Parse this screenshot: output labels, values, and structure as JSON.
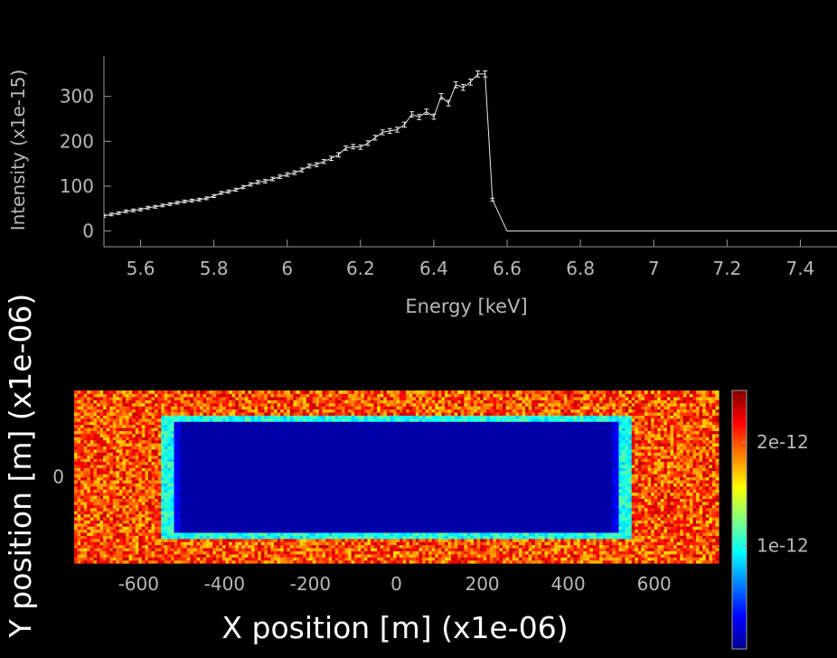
{
  "chart_data": [
    {
      "type": "line",
      "title": "",
      "xlabel": "Energy [keV]",
      "ylabel": "Intensity (x1e-15)",
      "xlim": [
        5.5,
        7.5
      ],
      "ylim": [
        -35,
        390
      ],
      "xticks": [
        5.6,
        5.8,
        6,
        6.2,
        6.4,
        6.6,
        6.8,
        7,
        7.2,
        7.4
      ],
      "xtick_labels": [
        "5.6",
        "5.8",
        "6",
        "6.2",
        "6.4",
        "6.6",
        "6.8",
        "7",
        "7.2",
        "7.4"
      ],
      "yticks": [
        0,
        100,
        200,
        300
      ],
      "ytick_labels": [
        "0",
        "100",
        "200",
        "300"
      ],
      "grid": false,
      "error_bars": true,
      "x": [
        5.5,
        5.52,
        5.54,
        5.56,
        5.58,
        5.6,
        5.62,
        5.64,
        5.66,
        5.68,
        5.7,
        5.72,
        5.74,
        5.76,
        5.78,
        5.8,
        5.82,
        5.84,
        5.86,
        5.88,
        5.9,
        5.92,
        5.94,
        5.96,
        5.98,
        6.0,
        6.02,
        6.04,
        6.06,
        6.08,
        6.1,
        6.12,
        6.14,
        6.16,
        6.18,
        6.2,
        6.22,
        6.24,
        6.26,
        6.28,
        6.3,
        6.32,
        6.34,
        6.36,
        6.38,
        6.4,
        6.42,
        6.44,
        6.46,
        6.48,
        6.5,
        6.52,
        6.54,
        6.56,
        6.6,
        6.8,
        7.0,
        7.2,
        7.4,
        7.5
      ],
      "y": [
        34,
        37,
        40,
        44,
        46,
        48,
        52,
        54,
        57,
        60,
        63,
        66,
        68,
        70,
        73,
        78,
        85,
        88,
        92,
        98,
        104,
        109,
        111,
        116,
        121,
        126,
        130,
        136,
        145,
        148,
        155,
        162,
        170,
        185,
        188,
        187,
        196,
        208,
        220,
        223,
        226,
        237,
        260,
        254,
        266,
        255,
        300,
        285,
        326,
        320,
        332,
        350,
        350,
        70,
        0,
        0,
        0,
        0,
        0,
        0
      ]
    },
    {
      "type": "heatmap",
      "title": "",
      "xlabel": "X position [m] (x1e-06)",
      "ylabel": "Y position [m] (x1e-06)",
      "xlim": [
        -750,
        750
      ],
      "ylim": [
        -100,
        100
      ],
      "xticks": [
        -600,
        -400,
        -200,
        0,
        200,
        400,
        600
      ],
      "xtick_labels": [
        "-600",
        "-400",
        "-200",
        "0",
        "200",
        "400",
        "600"
      ],
      "yticks": [
        0
      ],
      "ytick_labels": [
        "0"
      ],
      "colorscale": "jet",
      "colorbar": {
        "range": [
          0,
          2.5e-12
        ],
        "ticks": [
          1e-12,
          2e-12
        ],
        "tick_labels": [
          "1e-12",
          "2e-12"
        ]
      },
      "regions": [
        {
          "description": "background",
          "level": 2e-12
        },
        {
          "description": "rectangle edge ring",
          "x_range": [
            -550,
            550
          ],
          "y_range": [
            -70,
            70
          ],
          "level": 1e-12
        },
        {
          "description": "rectangle interior",
          "x_range": [
            -520,
            520
          ],
          "y_range": [
            -65,
            65
          ],
          "level": 1e-13
        }
      ]
    }
  ]
}
